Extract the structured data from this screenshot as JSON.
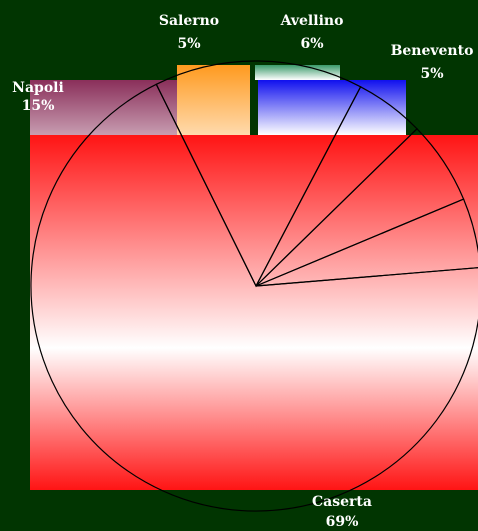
{
  "colors": {
    "background": "#013501",
    "outline": "#000000",
    "label": "#ffffff"
  },
  "chart_data": {
    "type": "pie",
    "title": "",
    "slices": [
      {
        "name": "Napoli",
        "value": 15,
        "label": "15%",
        "color": "#8a2f5a"
      },
      {
        "name": "Salerno",
        "value": 5,
        "label": "5%",
        "color": "#ff9a1f"
      },
      {
        "name": "Avellino",
        "value": 6,
        "label": "6%",
        "color": "#3a9a6a"
      },
      {
        "name": "Benevento",
        "value": 5,
        "label": "5%",
        "color": "#1010ee"
      },
      {
        "name": "Caserta",
        "value": 69,
        "label": "69%",
        "color": "#ff1414"
      }
    ]
  }
}
